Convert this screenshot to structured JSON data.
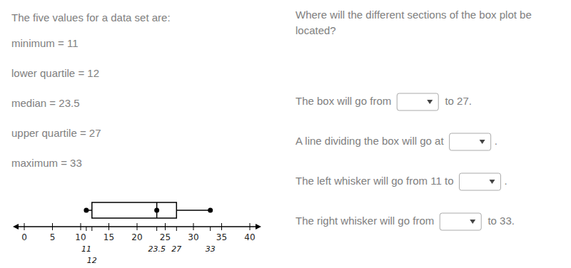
{
  "chart_data": {
    "type": "box",
    "title": "The five values for a data set are:",
    "annotations": [
      "minimum = 11",
      "lower quartile = 12",
      "median = 23.5",
      "upper quartile = 27",
      "maximum = 33"
    ],
    "subtitle": "Where will the different sections of the box plot be\nlocated?",
    "questions": [
      "The box will go from",
      "A line dividing the box will go at",
      "The left whisker will go from 11 to",
      "The right whisker will go from"
    ],
    "question_suffixes": [
      " to 27.",
      ".",
      ".",
      " to 33."
    ],
    "minimum": 11,
    "lower_quartile": 12,
    "median": 23.5,
    "upper_quartile": 27,
    "maximum": 33,
    "xlim": [
      0,
      40
    ],
    "xticks": [
      0,
      5,
      10,
      15,
      20,
      25,
      30,
      35,
      40
    ],
    "color": "#000000"
  }
}
